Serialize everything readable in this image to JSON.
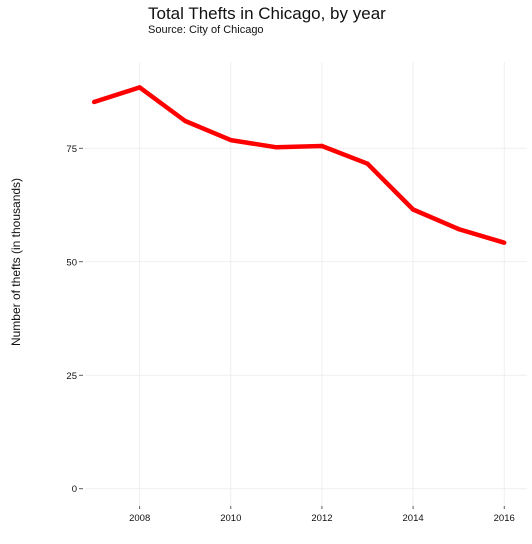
{
  "chart_data": {
    "type": "line",
    "title": "Total Thefts in Chicago, by year",
    "subtitle": "Source: City of Chicago",
    "xlabel": "",
    "ylabel": "Number of thefts (in thousands)",
    "x": [
      2007,
      2008,
      2009,
      2010,
      2011,
      2012,
      2013,
      2014,
      2015,
      2016
    ],
    "series": [
      {
        "values": [
          85.2,
          88.4,
          81.0,
          76.8,
          75.2,
          75.5,
          71.6,
          61.5,
          57.2,
          54.2
        ],
        "color": "#ff0000"
      }
    ],
    "xticks": [
      2008,
      2010,
      2012,
      2014,
      2016
    ],
    "yticks": [
      0,
      25,
      50,
      75
    ],
    "xlim": [
      2006.8,
      2016.5
    ],
    "ylim": [
      -3.8,
      94
    ],
    "grid": true,
    "legend": "none"
  }
}
